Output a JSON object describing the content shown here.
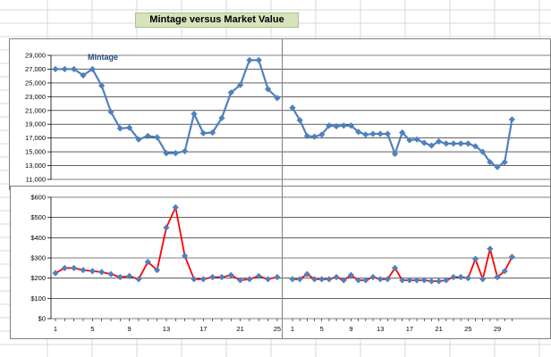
{
  "title": "Mintage versus Market Value",
  "colors": {
    "mintage_line": "#4f81bd",
    "mintage_marker": "#4f81bd",
    "value_line": "#ff0000",
    "value_marker": "#4f81bd",
    "grid": "#000000"
  },
  "chart_data": [
    {
      "type": "line",
      "title": "",
      "legend": "Mintage",
      "ylim": [
        11000,
        29000
      ],
      "yticks": [
        "29,000",
        "27,000",
        "25,000",
        "23,000",
        "21,000",
        "19,000",
        "17,000",
        "15,000",
        "13,000",
        "11,000"
      ],
      "x": [
        1,
        2,
        3,
        4,
        5,
        6,
        7,
        8,
        9,
        10,
        11,
        12,
        13,
        14,
        15,
        16,
        17,
        18,
        19,
        20,
        21,
        22,
        23,
        24,
        25
      ],
      "series": [
        {
          "name": "Mintage",
          "values": [
            27000,
            27000,
            27000,
            26100,
            27000,
            24600,
            20800,
            18400,
            18500,
            16800,
            17300,
            17100,
            14800,
            14800,
            15100,
            20500,
            17700,
            17800,
            19900,
            23600,
            24700,
            28300,
            28300,
            24100,
            22800
          ]
        }
      ]
    },
    {
      "type": "line",
      "title": "",
      "ylim": [
        11000,
        29000
      ],
      "x": [
        1,
        2,
        3,
        4,
        5,
        6,
        7,
        8,
        9,
        10,
        11,
        12,
        13,
        14,
        15,
        16,
        17,
        18,
        19,
        20,
        21,
        22,
        23,
        24,
        25,
        26,
        27,
        28,
        29,
        30,
        31
      ],
      "series": [
        {
          "name": "Mintage",
          "values": [
            21400,
            19600,
            17300,
            17200,
            17500,
            18800,
            18700,
            18800,
            18800,
            17900,
            17500,
            17600,
            17600,
            17600,
            14700,
            17800,
            16700,
            16800,
            16300,
            15900,
            16500,
            16200,
            16200,
            16200,
            16200,
            15800,
            15000,
            13500,
            12800,
            13500,
            19700
          ]
        }
      ]
    },
    {
      "type": "line",
      "title": "",
      "ylim": [
        0,
        600
      ],
      "yticks": [
        "$600",
        "$500",
        "$400",
        "$300",
        "$200",
        "$100",
        "$0"
      ],
      "xticks": [
        "1",
        "5",
        "9",
        "13",
        "17",
        "21",
        "25"
      ],
      "x": [
        1,
        2,
        3,
        4,
        5,
        6,
        7,
        8,
        9,
        10,
        11,
        12,
        13,
        14,
        15,
        16,
        17,
        18,
        19,
        20,
        21,
        22,
        23,
        24,
        25
      ],
      "series": [
        {
          "name": "Market Value",
          "values": [
            225,
            250,
            250,
            240,
            235,
            230,
            220,
            205,
            210,
            195,
            280,
            240,
            450,
            550,
            310,
            195,
            195,
            205,
            205,
            215,
            190,
            195,
            210,
            195,
            205
          ]
        }
      ]
    },
    {
      "type": "line",
      "title": "",
      "ylim": [
        0,
        600
      ],
      "xticks": [
        "1",
        "5",
        "9",
        "13",
        "17",
        "21",
        "25",
        "29"
      ],
      "x": [
        1,
        2,
        3,
        4,
        5,
        6,
        7,
        8,
        9,
        10,
        11,
        12,
        13,
        14,
        15,
        16,
        17,
        18,
        19,
        20,
        21,
        22,
        23,
        24,
        25,
        26,
        27,
        28,
        29,
        30,
        31
      ],
      "series": [
        {
          "name": "Market Value",
          "values": [
            195,
            195,
            220,
            195,
            195,
            195,
            205,
            190,
            215,
            190,
            190,
            205,
            195,
            195,
            250,
            190,
            190,
            190,
            190,
            185,
            185,
            190,
            205,
            205,
            200,
            295,
            195,
            345,
            205,
            235,
            305
          ]
        }
      ]
    }
  ]
}
